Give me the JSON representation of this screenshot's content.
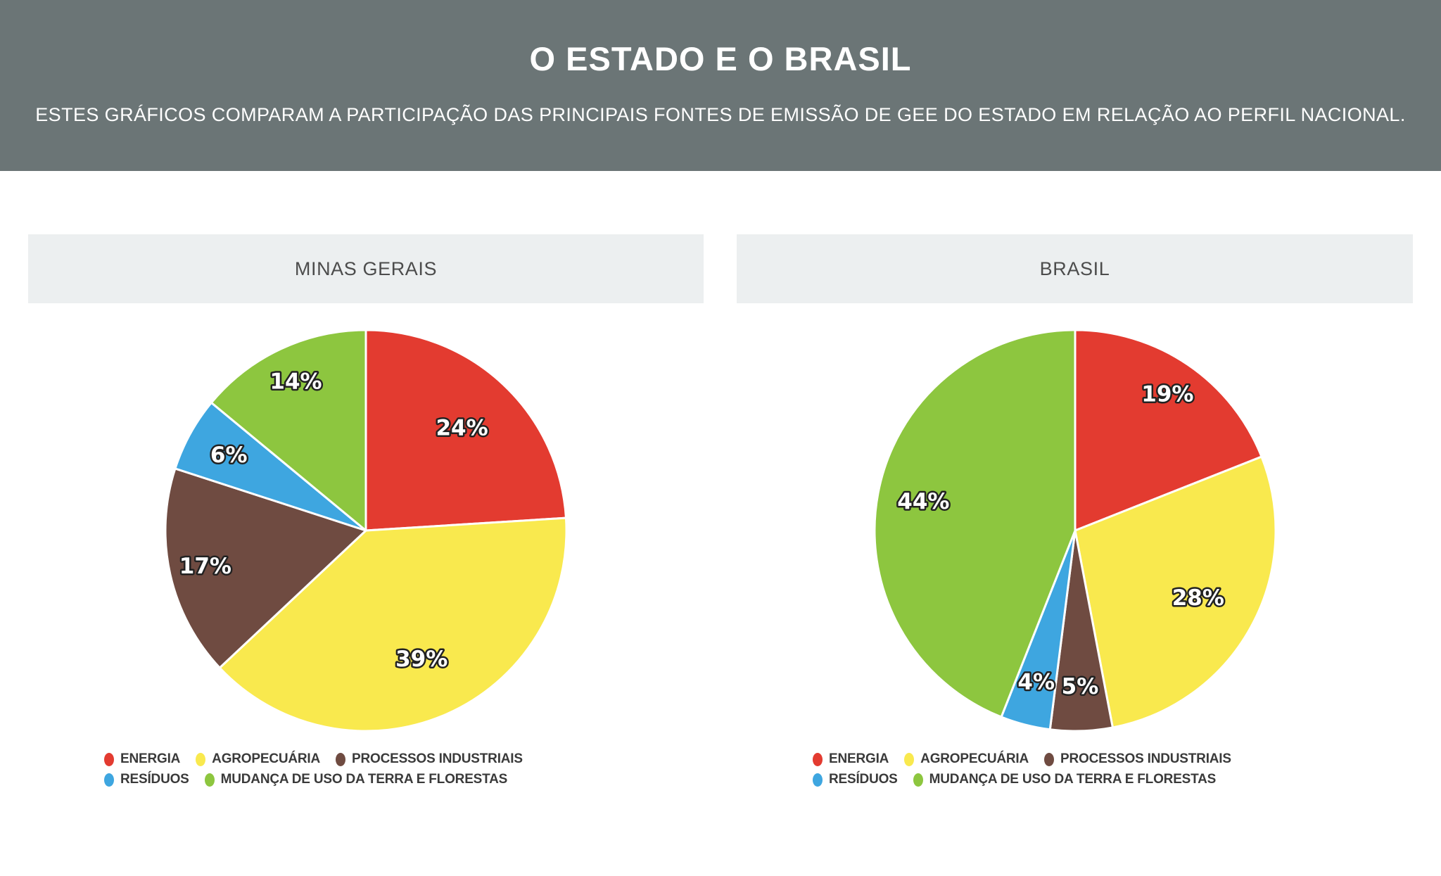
{
  "page": {
    "title": "O ESTADO E O BRASIL",
    "subtitle": "ESTES GRÁFICOS COMPARAM A PARTICIPAÇÃO DAS PRINCIPAIS FONTES DE EMISSÃO DE GEE DO ESTADO EM RELAÇÃO AO PERFIL NACIONAL.",
    "colors": {
      "header_bg": "#6b7576",
      "panel_bar_bg": "#eceff0",
      "header_text": "#ffffff",
      "panel_title_text": "#4c4c4c",
      "legend_text": "#3a3a3a",
      "slice_label_fill": "#ffffff",
      "slice_label_outline": "#222222"
    }
  },
  "chart_data": [
    {
      "type": "pie",
      "title": "MINAS GERAIS",
      "categories": [
        "ENERGIA",
        "AGROPECUÁRIA",
        "PROCESSOS INDUSTRIAIS",
        "RESÍDUOS",
        "MUDANÇA DE USO DA TERRA E FLORESTAS"
      ],
      "values": [
        24,
        39,
        17,
        6,
        14
      ],
      "labels": [
        "24%",
        "39%",
        "17%",
        "6%",
        "14%"
      ],
      "unit": "%",
      "colors": [
        "#e33b30",
        "#f9e94e",
        "#6f4b41",
        "#3ea6e0",
        "#8dc63f"
      ],
      "start_angle_deg": 0,
      "direction": "clockwise",
      "legend_position": "bottom"
    },
    {
      "type": "pie",
      "title": "BRASIL",
      "categories": [
        "ENERGIA",
        "AGROPECUÁRIA",
        "PROCESSOS INDUSTRIAIS",
        "RESÍDUOS",
        "MUDANÇA DE USO DA TERRA E FLORESTAS"
      ],
      "values": [
        19,
        28,
        5,
        4,
        44
      ],
      "labels": [
        "19%",
        "28%",
        "5%",
        "4%",
        "44%"
      ],
      "unit": "%",
      "colors": [
        "#e33b30",
        "#f9e94e",
        "#6f4b41",
        "#3ea6e0",
        "#8dc63f"
      ],
      "start_angle_deg": 0,
      "direction": "clockwise",
      "legend_position": "bottom"
    }
  ]
}
